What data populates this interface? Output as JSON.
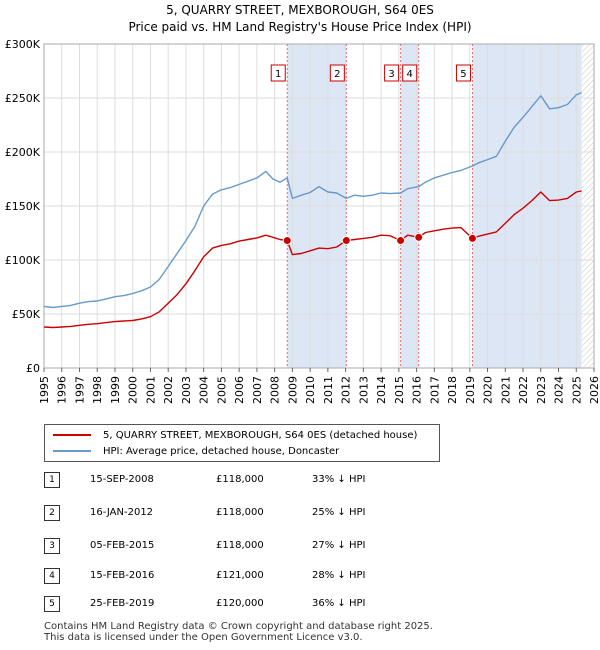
{
  "header": {
    "title": "5, QUARRY STREET, MEXBOROUGH, S64 0ES",
    "subtitle": "Price paid vs. HM Land Registry's House Price Index (HPI)"
  },
  "legend": {
    "property": "5, QUARRY STREET, MEXBOROUGH, S64 0ES (detached house)",
    "hpi": "HPI: Average price, detached house, Doncaster"
  },
  "sales": [
    {
      "num": "1",
      "date": "15-SEP-2008",
      "price": "£118,000",
      "delta": "33% ↓ HPI"
    },
    {
      "num": "2",
      "date": "16-JAN-2012",
      "price": "£118,000",
      "delta": "25% ↓ HPI"
    },
    {
      "num": "3",
      "date": "05-FEB-2015",
      "price": "£118,000",
      "delta": "27% ↓ HPI"
    },
    {
      "num": "4",
      "date": "15-FEB-2016",
      "price": "£121,000",
      "delta": "28% ↓ HPI"
    },
    {
      "num": "5",
      "date": "25-FEB-2019",
      "price": "£120,000",
      "delta": "36% ↓ HPI"
    }
  ],
  "footer": {
    "line1": "Contains HM Land Registry data © Crown copyright and database right 2025.",
    "line2": "This data is licensed under the Open Government Licence v3.0."
  },
  "colors": {
    "property_line": "#cc0000",
    "hpi_line": "#6699cc",
    "shade": "#dde6f5",
    "marker_line": "#e07070",
    "grid": "#dddddd"
  },
  "chart_data": {
    "type": "line",
    "title": "5, QUARRY STREET, MEXBOROUGH, S64 0ES",
    "subtitle": "Price paid vs. HM Land Registry's House Price Index (HPI)",
    "xlabel": "",
    "ylabel": "",
    "xlim": [
      1995,
      2026
    ],
    "ylim": [
      0,
      300000
    ],
    "x_ticks": [
      1995,
      1996,
      1997,
      1998,
      1999,
      2000,
      2001,
      2002,
      2003,
      2004,
      2005,
      2006,
      2007,
      2008,
      2009,
      2010,
      2011,
      2012,
      2013,
      2014,
      2015,
      2016,
      2017,
      2018,
      2019,
      2020,
      2021,
      2022,
      2023,
      2024,
      2025,
      2026
    ],
    "y_ticks": [
      0,
      50000,
      100000,
      150000,
      200000,
      250000,
      300000
    ],
    "y_tick_labels": [
      "£0",
      "£50K",
      "£100K",
      "£150K",
      "£200K",
      "£250K",
      "£300K"
    ],
    "grid": true,
    "shaded_spans": [
      [
        2008.71,
        2012.04
      ],
      [
        2015.1,
        2016.12
      ],
      [
        2019.15,
        2025.3
      ]
    ],
    "hatched_from": 2025.3,
    "markers": [
      {
        "label": "1",
        "x": 2008.71,
        "y": 118000
      },
      {
        "label": "2",
        "x": 2012.04,
        "y": 118000
      },
      {
        "label": "3",
        "x": 2015.1,
        "y": 118000
      },
      {
        "label": "4",
        "x": 2016.12,
        "y": 121000
      },
      {
        "label": "5",
        "x": 2019.15,
        "y": 120000
      }
    ],
    "series": [
      {
        "name": "5, QUARRY STREET, MEXBOROUGH, S64 0ES (detached house)",
        "x": [
          1995,
          1995.5,
          1996,
          1996.5,
          1997,
          1997.5,
          1998,
          1998.5,
          1999,
          1999.5,
          2000,
          2000.5,
          2001,
          2001.5,
          2002,
          2002.5,
          2003,
          2003.5,
          2004,
          2004.5,
          2005,
          2005.5,
          2006,
          2006.5,
          2007,
          2007.5,
          2007.9,
          2008.3,
          2008.71,
          2009.0,
          2009.5,
          2010,
          2010.5,
          2011,
          2011.5,
          2012.04,
          2012.5,
          2013,
          2013.5,
          2014,
          2014.5,
          2015.1,
          2015.5,
          2016.12,
          2016.5,
          2017,
          2017.5,
          2018,
          2018.5,
          2019.15,
          2019.5,
          2020,
          2020.5,
          2021,
          2021.5,
          2022,
          2022.5,
          2023,
          2023.5,
          2024,
          2024.5,
          2025,
          2025.3
        ],
        "values": [
          38000,
          37500,
          38000,
          38500,
          39500,
          40500,
          41000,
          42000,
          43000,
          43500,
          44000,
          45500,
          47500,
          52000,
          60000,
          68000,
          78000,
          90000,
          103000,
          111000,
          113500,
          115000,
          117500,
          119000,
          120500,
          123000,
          121000,
          119000,
          118000,
          105000,
          106000,
          108500,
          111000,
          110500,
          112000,
          118000,
          119000,
          120000,
          121000,
          123000,
          122500,
          118000,
          123000,
          121000,
          125500,
          127000,
          128500,
          129500,
          130000,
          120000,
          122000,
          124000,
          126000,
          134000,
          142000,
          148000,
          155000,
          163000,
          155000,
          155500,
          157000,
          163000,
          164000
        ]
      },
      {
        "name": "HPI: Average price, detached house, Doncaster",
        "x": [
          1995,
          1995.5,
          1996,
          1996.5,
          1997,
          1997.5,
          1998,
          1998.5,
          1999,
          1999.5,
          2000,
          2000.5,
          2001,
          2001.5,
          2002,
          2002.5,
          2003,
          2003.5,
          2004,
          2004.5,
          2005,
          2005.5,
          2006,
          2006.5,
          2007,
          2007.5,
          2007.9,
          2008.3,
          2008.71,
          2009.0,
          2009.5,
          2010,
          2010.5,
          2011,
          2011.5,
          2012.04,
          2012.5,
          2013,
          2013.5,
          2014,
          2014.5,
          2015.1,
          2015.5,
          2016.12,
          2016.5,
          2017,
          2017.5,
          2018,
          2018.5,
          2019.15,
          2019.5,
          2020,
          2020.5,
          2021,
          2021.5,
          2022,
          2022.5,
          2023,
          2023.5,
          2024,
          2024.5,
          2025,
          2025.3
        ],
        "values": [
          57000,
          56000,
          57000,
          58000,
          60000,
          61500,
          62000,
          64000,
          66000,
          67000,
          69000,
          71500,
          75000,
          82000,
          94000,
          106000,
          118000,
          131000,
          150000,
          161000,
          165000,
          167000,
          170000,
          173000,
          176000,
          182000,
          175000,
          172000,
          176000,
          157000,
          160000,
          162500,
          168000,
          163000,
          162000,
          157000,
          160000,
          159000,
          160000,
          162000,
          161500,
          162000,
          166000,
          168000,
          172000,
          176000,
          178500,
          181000,
          183000,
          187000,
          190000,
          193000,
          196000,
          210000,
          223000,
          232000,
          242000,
          252000,
          240000,
          241000,
          244000,
          253000,
          255000
        ]
      }
    ]
  }
}
